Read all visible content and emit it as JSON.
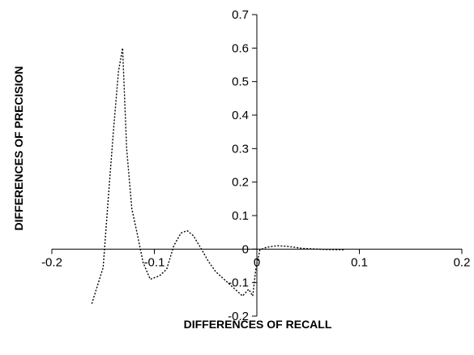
{
  "chart_data": {
    "type": "line",
    "title": "",
    "xlabel": "DIFFERENCES OF RECALL",
    "ylabel": "DIFFERENCES OF PRECISION",
    "xlim": [
      -0.2,
      0.2
    ],
    "ylim": [
      -0.2,
      0.7
    ],
    "x_ticks": [
      -0.2,
      -0.1,
      0,
      0.1,
      0.2
    ],
    "x_tick_labels": [
      "-0.2",
      "-0.1",
      "0",
      "0.1",
      "0.2"
    ],
    "y_ticks": [
      -0.2,
      -0.1,
      0,
      0.1,
      0.2,
      0.3,
      0.4,
      0.5,
      0.6,
      0.7
    ],
    "y_tick_labels": [
      "-0.2",
      "-0.1",
      "0",
      "0.1",
      "0.2",
      "0.3",
      "0.4",
      "0.5",
      "0.6",
      "0.7"
    ],
    "grid": false,
    "legend": "none",
    "line_style": "dotted",
    "line_color": "#000000",
    "series": [
      {
        "points": [
          {
            "x": -0.161,
            "y": -0.163
          },
          {
            "x": -0.15,
            "y": -0.055
          },
          {
            "x": -0.145,
            "y": 0.15
          },
          {
            "x": -0.14,
            "y": 0.35
          },
          {
            "x": -0.135,
            "y": 0.53
          },
          {
            "x": -0.131,
            "y": 0.6
          },
          {
            "x": -0.127,
            "y": 0.3
          },
          {
            "x": -0.122,
            "y": 0.12
          },
          {
            "x": -0.117,
            "y": 0.05
          },
          {
            "x": -0.111,
            "y": -0.04
          },
          {
            "x": -0.104,
            "y": -0.09
          },
          {
            "x": -0.095,
            "y": -0.08
          },
          {
            "x": -0.088,
            "y": -0.06
          },
          {
            "x": -0.081,
            "y": 0.01
          },
          {
            "x": -0.074,
            "y": 0.048
          },
          {
            "x": -0.068,
            "y": 0.055
          },
          {
            "x": -0.062,
            "y": 0.04
          },
          {
            "x": -0.055,
            "y": 0.005
          },
          {
            "x": -0.047,
            "y": -0.038
          },
          {
            "x": -0.04,
            "y": -0.068
          },
          {
            "x": -0.032,
            "y": -0.09
          },
          {
            "x": -0.023,
            "y": -0.115
          },
          {
            "x": -0.014,
            "y": -0.14
          },
          {
            "x": -0.008,
            "y": -0.12
          },
          {
            "x": -0.004,
            "y": -0.14
          },
          {
            "x": -0.001,
            "y": -0.06
          },
          {
            "x": 0.003,
            "y": -0.002
          },
          {
            "x": 0.01,
            "y": 0.006
          },
          {
            "x": 0.02,
            "y": 0.01
          },
          {
            "x": 0.03,
            "y": 0.008
          },
          {
            "x": 0.045,
            "y": 0.002
          },
          {
            "x": 0.065,
            "y": -0.001
          },
          {
            "x": 0.085,
            "y": -0.002
          }
        ]
      }
    ]
  }
}
